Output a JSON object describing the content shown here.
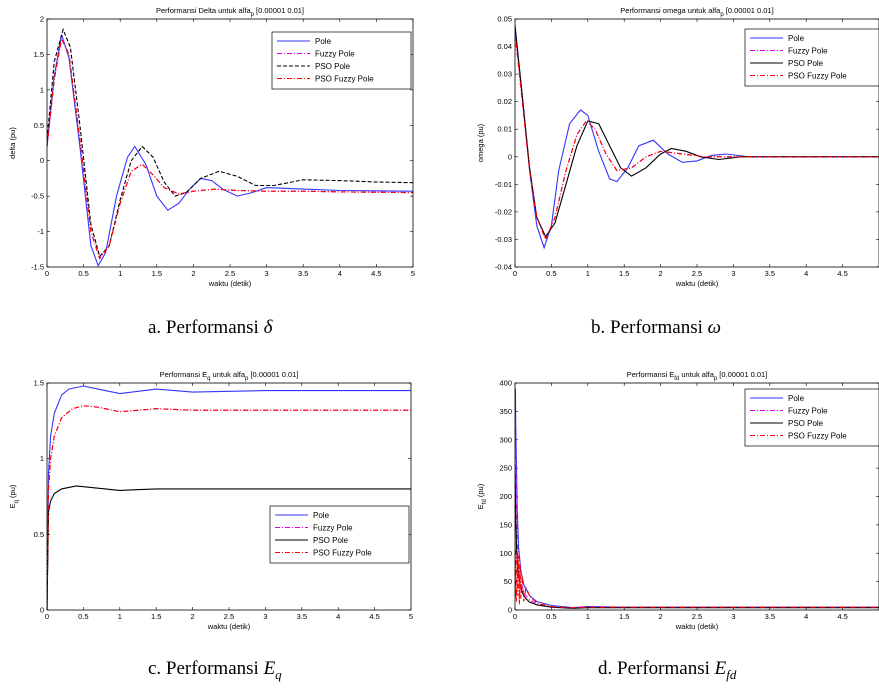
{
  "colors": {
    "pole": "#3333ff",
    "fuzzy": "#e600e6",
    "pso": "#000000",
    "psofuzzy": "#ff0000"
  },
  "captions": {
    "a": {
      "prefix": "a.  Performansi ",
      "symbol": "δ",
      "sub": ""
    },
    "b": {
      "prefix": "b.  Performansi ",
      "symbol": "ω",
      "sub": ""
    },
    "c": {
      "prefix": "c. Performansi ",
      "symbol": "E",
      "sub": "q"
    },
    "d": {
      "prefix": "d.  Performansi ",
      "symbol": "E",
      "sub": "fd"
    }
  },
  "chart_data": [
    {
      "id": "delta",
      "type": "line",
      "title": "Performansi Delta untuk alfa",
      "title_sub": "p",
      "title_suffix": " [0.00001 0.01]",
      "xlabel": "waktu (detik)",
      "ylabel": "delta (pu)",
      "ylabel_sub": "",
      "xlim": [
        0,
        5
      ],
      "ylim": [
        -1.5,
        2
      ],
      "xticks": [
        0,
        0.5,
        1,
        1.5,
        2,
        2.5,
        3,
        3.5,
        4,
        4.5,
        5
      ],
      "xtick_labels": [
        "0",
        "0.5",
        "1",
        "1.5",
        "2",
        "2.5",
        "3",
        "3.5",
        "4",
        "4.5",
        "5"
      ],
      "yticks": [
        -1.5,
        -1,
        -0.5,
        0,
        0.5,
        1,
        1.5,
        2
      ],
      "ytick_labels": [
        "-1.5",
        "-1",
        "-0.5",
        "0",
        "0.5",
        "1",
        "1.5",
        "2"
      ],
      "legend": "top-right",
      "series": [
        {
          "name": "Pole",
          "key": "pole",
          "dash": "",
          "x": [
            0,
            0.1,
            0.2,
            0.3,
            0.45,
            0.6,
            0.7,
            0.8,
            0.95,
            1.1,
            1.2,
            1.35,
            1.5,
            1.65,
            1.8,
            1.95,
            2.1,
            2.25,
            2.4,
            2.6,
            2.8,
            3,
            3.5,
            4,
            5
          ],
          "y": [
            0.2,
            1.2,
            1.78,
            1.45,
            0.2,
            -1.2,
            -1.48,
            -1.3,
            -0.5,
            0.05,
            0.2,
            -0.05,
            -0.5,
            -0.7,
            -0.6,
            -0.4,
            -0.25,
            -0.28,
            -0.4,
            -0.5,
            -0.45,
            -0.38,
            -0.4,
            -0.42,
            -0.43
          ]
        },
        {
          "name": "Fuzzy Pole",
          "key": "fuzzy",
          "dash": "5,2,1,2",
          "x": [
            0,
            0.1,
            0.2,
            0.3,
            0.45,
            0.6,
            0.72,
            0.85,
            1,
            1.15,
            1.3,
            1.45,
            1.6,
            1.8,
            2,
            2.3,
            2.6,
            3,
            3.5,
            4,
            5
          ],
          "y": [
            0.2,
            1.15,
            1.72,
            1.5,
            0.3,
            -1,
            -1.38,
            -1.2,
            -0.6,
            -0.15,
            -0.05,
            -0.2,
            -0.38,
            -0.47,
            -0.43,
            -0.4,
            -0.42,
            -0.43,
            -0.43,
            -0.44,
            -0.45
          ]
        },
        {
          "name": "PSO Pole",
          "key": "pso",
          "dash": "4,2",
          "x": [
            0,
            0.1,
            0.22,
            0.32,
            0.45,
            0.6,
            0.72,
            0.85,
            1,
            1.15,
            1.3,
            1.45,
            1.6,
            1.75,
            1.9,
            2.1,
            2.35,
            2.6,
            2.85,
            3.1,
            3.5,
            4,
            4.5,
            5
          ],
          "y": [
            0.3,
            1.4,
            1.85,
            1.6,
            0.5,
            -0.9,
            -1.35,
            -1.2,
            -0.55,
            0,
            0.2,
            0.05,
            -0.3,
            -0.5,
            -0.45,
            -0.25,
            -0.15,
            -0.22,
            -0.35,
            -0.35,
            -0.27,
            -0.28,
            -0.3,
            -0.31
          ]
        },
        {
          "name": "PSO Fuzzy Pole",
          "key": "psofuzzy",
          "dash": "5,2,1,2",
          "x": [
            0,
            0.1,
            0.2,
            0.3,
            0.45,
            0.6,
            0.72,
            0.85,
            1,
            1.15,
            1.3,
            1.45,
            1.6,
            1.8,
            2,
            2.3,
            2.6,
            3,
            3.5,
            4,
            5
          ],
          "y": [
            0.2,
            1.15,
            1.72,
            1.5,
            0.3,
            -1,
            -1.38,
            -1.2,
            -0.6,
            -0.15,
            -0.05,
            -0.2,
            -0.38,
            -0.47,
            -0.43,
            -0.4,
            -0.42,
            -0.43,
            -0.43,
            -0.44,
            -0.45
          ]
        }
      ]
    },
    {
      "id": "omega",
      "type": "line",
      "title": "Performansi omega untuk alfa",
      "title_sub": "p",
      "title_suffix": " [0.00001 0.01]",
      "xlabel": "waktu (detik)",
      "ylabel": "omega (pu)",
      "ylabel_sub": "",
      "xlim": [
        0,
        5
      ],
      "ylim": [
        -0.04,
        0.05
      ],
      "xticks": [
        0,
        0.5,
        1,
        1.5,
        2,
        2.5,
        3,
        3.5,
        4,
        4.5
      ],
      "xtick_labels": [
        "0",
        "0.5",
        "1",
        "1.5",
        "2",
        "2.5",
        "3",
        "3.5",
        "4",
        "4.5"
      ],
      "yticks": [
        -0.04,
        -0.03,
        -0.02,
        -0.01,
        0,
        0.01,
        0.02,
        0.03,
        0.04,
        0.05
      ],
      "ytick_labels": [
        "-0.04",
        "-0.03",
        "-0.02",
        "-0.01",
        "0",
        "0.01",
        "0.02",
        "0.03",
        "0.04",
        "0.05"
      ],
      "legend": "top-right",
      "series": [
        {
          "name": "Pole",
          "key": "pole",
          "dash": "",
          "x": [
            0,
            0.1,
            0.2,
            0.3,
            0.4,
            0.5,
            0.6,
            0.75,
            0.9,
            1,
            1.15,
            1.3,
            1.4,
            1.55,
            1.7,
            1.9,
            2.1,
            2.3,
            2.5,
            2.7,
            2.9,
            3.2,
            3.6,
            4,
            5
          ],
          "y": [
            0.048,
            0.022,
            -0.005,
            -0.025,
            -0.033,
            -0.025,
            -0.005,
            0.012,
            0.017,
            0.015,
            0.002,
            -0.008,
            -0.009,
            -0.004,
            0.004,
            0.006,
            0.001,
            -0.002,
            -0.0015,
            0.0005,
            0.001,
            0,
            0,
            0,
            0
          ]
        },
        {
          "name": "Fuzzy Pole",
          "key": "fuzzy",
          "dash": "5,2,1,2",
          "x": [
            0,
            0.1,
            0.2,
            0.3,
            0.42,
            0.55,
            0.7,
            0.85,
            0.98,
            1.1,
            1.25,
            1.4,
            1.6,
            1.8,
            2,
            2.3,
            2.6,
            3,
            4,
            5
          ],
          "y": [
            0.045,
            0.02,
            -0.005,
            -0.022,
            -0.03,
            -0.022,
            -0.005,
            0.008,
            0.013,
            0.01,
            0.001,
            -0.005,
            -0.004,
            0,
            0.002,
            0.001,
            0,
            0,
            0,
            0
          ]
        },
        {
          "name": "PSO Pole",
          "key": "pso",
          "dash": "",
          "x": [
            0,
            0.1,
            0.2,
            0.3,
            0.42,
            0.55,
            0.7,
            0.85,
            1,
            1.15,
            1.3,
            1.45,
            1.6,
            1.8,
            2,
            2.15,
            2.35,
            2.55,
            2.8,
            3.1,
            3.5,
            4,
            5
          ],
          "y": [
            0.047,
            0.022,
            -0.004,
            -0.022,
            -0.029,
            -0.024,
            -0.01,
            0.004,
            0.013,
            0.012,
            0.004,
            -0.004,
            -0.007,
            -0.004,
            0.001,
            0.003,
            0.002,
            0,
            -0.001,
            0,
            0,
            0,
            0
          ]
        },
        {
          "name": "PSO Fuzzy Pole",
          "key": "psofuzzy",
          "dash": "5,2,1,2",
          "x": [
            0,
            0.1,
            0.2,
            0.3,
            0.42,
            0.55,
            0.7,
            0.85,
            0.98,
            1.1,
            1.25,
            1.4,
            1.6,
            1.8,
            2,
            2.3,
            2.6,
            3,
            4,
            5
          ],
          "y": [
            0.045,
            0.02,
            -0.005,
            -0.022,
            -0.03,
            -0.022,
            -0.005,
            0.008,
            0.013,
            0.01,
            0.001,
            -0.005,
            -0.004,
            0,
            0.002,
            0.001,
            0,
            0,
            0,
            0
          ]
        }
      ]
    },
    {
      "id": "eq",
      "type": "line",
      "title": "Performansi E",
      "title_sub": "q",
      "title_suffix": " untuk alfa",
      "title_sub2": "p",
      "title_suffix2": " [0.00001 0.01]",
      "xlabel": "waktu (detik)",
      "ylabel": "E",
      "ylabel_sub": "q",
      "ylabel_suffix": " (pu)",
      "xlim": [
        0,
        5
      ],
      "ylim": [
        0,
        1.5
      ],
      "xticks": [
        0,
        0.5,
        1,
        1.5,
        2,
        2.5,
        3,
        3.5,
        4,
        4.5,
        5
      ],
      "xtick_labels": [
        "0",
        "0.5",
        "1",
        "1.5",
        "2",
        "2.5",
        "3",
        "3.5",
        "4",
        "4.5",
        "5"
      ],
      "yticks": [
        0,
        0.5,
        1,
        1.5
      ],
      "ytick_labels": [
        "0",
        "0.5",
        "1",
        "1.5"
      ],
      "legend": "lower-right",
      "series": [
        {
          "name": "Pole",
          "key": "pole",
          "dash": "",
          "x": [
            0,
            0.02,
            0.05,
            0.1,
            0.2,
            0.3,
            0.5,
            0.7,
            1,
            1.5,
            2,
            3,
            4,
            5
          ],
          "y": [
            0,
            0.9,
            1.15,
            1.3,
            1.42,
            1.46,
            1.48,
            1.46,
            1.43,
            1.46,
            1.44,
            1.45,
            1.45,
            1.45
          ]
        },
        {
          "name": "Fuzzy Pole",
          "key": "fuzzy",
          "dash": "5,2,1,2",
          "x": [
            0,
            0.02,
            0.05,
            0.1,
            0.2,
            0.35,
            0.5,
            0.7,
            1,
            1.5,
            2,
            3,
            4,
            5
          ],
          "y": [
            0,
            0.8,
            1.0,
            1.15,
            1.27,
            1.33,
            1.35,
            1.34,
            1.31,
            1.33,
            1.32,
            1.32,
            1.32,
            1.32
          ]
        },
        {
          "name": "PSO Pole",
          "key": "pso",
          "dash": "",
          "x": [
            0,
            0.02,
            0.05,
            0.1,
            0.2,
            0.4,
            0.6,
            0.8,
            1,
            1.5,
            2,
            3,
            4,
            5
          ],
          "y": [
            0,
            0.65,
            0.72,
            0.77,
            0.8,
            0.82,
            0.81,
            0.8,
            0.79,
            0.8,
            0.8,
            0.8,
            0.8,
            0.8
          ]
        },
        {
          "name": "PSO Fuzzy Pole",
          "key": "psofuzzy",
          "dash": "5,2,1,2",
          "x": [
            0,
            0.02,
            0.05,
            0.1,
            0.2,
            0.35,
            0.5,
            0.7,
            1,
            1.5,
            2,
            3,
            4,
            5
          ],
          "y": [
            0,
            0.8,
            1.0,
            1.15,
            1.27,
            1.33,
            1.35,
            1.34,
            1.31,
            1.33,
            1.32,
            1.32,
            1.32,
            1.32
          ]
        }
      ]
    },
    {
      "id": "efd",
      "type": "line",
      "title": "Performansi E",
      "title_sub": "fd",
      "title_suffix": " untuk alfa",
      "title_sub2": "p",
      "title_suffix2": " [0.00001 0.01]",
      "xlabel": "waktu (detik)",
      "ylabel": "E",
      "ylabel_sub": "fd",
      "ylabel_suffix": " (pu)",
      "xlim": [
        0,
        5
      ],
      "ylim": [
        0,
        400
      ],
      "xticks": [
        0,
        0.5,
        1,
        1.5,
        2,
        2.5,
        3,
        3.5,
        4,
        4.5
      ],
      "xtick_labels": [
        "0",
        "0.5",
        "1",
        "1.5",
        "2",
        "2.5",
        "3",
        "3.5",
        "4",
        "4.5"
      ],
      "yticks": [
        0,
        50,
        100,
        150,
        200,
        250,
        300,
        350,
        400
      ],
      "ytick_labels": [
        "0",
        "50",
        "100",
        "150",
        "200",
        "250",
        "300",
        "350",
        "400"
      ],
      "legend": "top-right",
      "series": [
        {
          "name": "Pole",
          "key": "pole",
          "dash": "",
          "x": [
            0,
            0.005,
            0.01,
            0.02,
            0.03,
            0.05,
            0.08,
            0.12,
            0.2,
            0.3,
            0.5,
            0.8,
            1,
            1.5,
            2,
            3,
            4,
            5
          ],
          "y": [
            350,
            390,
            330,
            250,
            180,
            110,
            70,
            45,
            25,
            15,
            8,
            4,
            6,
            5,
            5,
            5,
            5,
            5
          ]
        },
        {
          "name": "Fuzzy Pole",
          "key": "fuzzy",
          "dash": "5,2,1,2",
          "x": [
            0,
            0.005,
            0.01,
            0.02,
            0.03,
            0.05,
            0.08,
            0.12,
            0.2,
            0.3,
            0.5,
            0.8,
            1,
            1.5,
            2,
            3,
            4,
            5
          ],
          "y": [
            300,
            340,
            260,
            180,
            120,
            80,
            50,
            30,
            18,
            10,
            6,
            4,
            5,
            5,
            5,
            5,
            5,
            5
          ]
        },
        {
          "name": "PSO Pole",
          "key": "pso",
          "dash": "",
          "x": [
            0,
            0.01,
            0.02,
            0.04,
            0.07,
            0.1,
            0.15,
            0.2,
            0.3,
            0.5,
            0.8,
            1,
            2,
            3,
            4,
            5
          ],
          "y": [
            250,
            170,
            110,
            70,
            45,
            30,
            20,
            14,
            9,
            5,
            3,
            4,
            4,
            4,
            4,
            4
          ]
        },
        {
          "name": "PSO Fuzzy Pole",
          "key": "psofuzzy",
          "dash": "5,2,1,2",
          "x": [
            0,
            0.005,
            0.01,
            0.02,
            0.03,
            0.04,
            0.05,
            0.06,
            0.07,
            0.08,
            0.1,
            0.12,
            0.15,
            0.2,
            0.3,
            0.5,
            0.8,
            1,
            2,
            3,
            4,
            5
          ],
          "y": [
            120,
            20,
            110,
            15,
            100,
            25,
            95,
            10,
            80,
            20,
            60,
            15,
            40,
            25,
            12,
            6,
            4,
            5,
            5,
            5,
            5,
            5
          ]
        }
      ]
    }
  ]
}
